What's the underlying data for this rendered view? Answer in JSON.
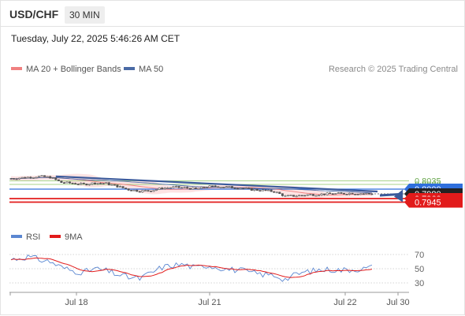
{
  "header": {
    "symbol": "USD/CHF",
    "timeframe": "30 MIN"
  },
  "datetime": "Tuesday, July 22, 2025 5:46:26 AM CET",
  "copyright": "Research © 2025 Trading Central",
  "colors": {
    "candle": "#555555",
    "bollinger_band": "#fcd9d9",
    "ma20": "#f08080",
    "ma50": "#4a6aa5",
    "trendline": "#3a5a9b",
    "resistance": "#a8d38a",
    "pivot": "#2f6fdc",
    "support": "#e21b1b",
    "rsi": "#5b87d1",
    "rsi_ma": "#e21b1b"
  },
  "chart_data": [
    {
      "type": "line",
      "subtype": "candlestick",
      "legend": [
        {
          "label": "MA 20 + Bollinger Bands",
          "color": "#f08080"
        },
        {
          "label": "MA 50",
          "color": "#4a6aa5"
        }
      ],
      "x_ticks": [
        "Jul 18",
        "Jul 21",
        "Jul 22",
        "Jul 30"
      ],
      "price_levels": [
        {
          "value": "0.8035",
          "role": "resistance"
        },
        {
          "value": "0.8020",
          "role": "resistance"
        },
        {
          "value": "0.8000",
          "role": "pivot"
        },
        {
          "value": "0.7980",
          "role": "last"
        },
        {
          "value": "0.7960",
          "role": "support"
        },
        {
          "value": "0.7945",
          "role": "support"
        }
      ],
      "price_anchors": [
        [
          0,
          0.8045
        ],
        [
          6,
          0.805
        ],
        [
          10,
          0.8054
        ],
        [
          14,
          0.805
        ],
        [
          18,
          0.8028
        ],
        [
          22,
          0.8025
        ],
        [
          26,
          0.802
        ],
        [
          30,
          0.8026
        ],
        [
          34,
          0.8024
        ],
        [
          38,
          0.8012
        ],
        [
          42,
          0.7998
        ],
        [
          46,
          0.7992
        ],
        [
          50,
          0.7994
        ],
        [
          54,
          0.8004
        ],
        [
          58,
          0.8008
        ],
        [
          62,
          0.8006
        ],
        [
          66,
          0.8
        ],
        [
          70,
          0.801
        ],
        [
          74,
          0.8012
        ],
        [
          78,
          0.8008
        ],
        [
          82,
          0.8005
        ],
        [
          86,
          0.7998
        ],
        [
          90,
          0.7995
        ],
        [
          94,
          0.799
        ],
        [
          98,
          0.797
        ],
        [
          102,
          0.7972
        ],
        [
          106,
          0.7976
        ],
        [
          110,
          0.7978
        ],
        [
          114,
          0.798
        ],
        [
          118,
          0.7981
        ],
        [
          122,
          0.7983
        ],
        [
          126,
          0.7981
        ],
        [
          129,
          0.798
        ]
      ],
      "projection": {
        "from": 0.798,
        "to": 0.7945
      },
      "trendline": {
        "from": 0.8054,
        "to": 0.799
      }
    },
    {
      "type": "line",
      "legend": [
        {
          "label": "RSI",
          "color": "#5b87d1"
        },
        {
          "label": "9MA",
          "color": "#e21b1b"
        }
      ],
      "y_ticks": [
        70,
        50,
        30
      ],
      "ylim": [
        20,
        80
      ],
      "rsi_anchors": [
        [
          0,
          63
        ],
        [
          6,
          67
        ],
        [
          10,
          63
        ],
        [
          14,
          60
        ],
        [
          18,
          52
        ],
        [
          22,
          47
        ],
        [
          26,
          45
        ],
        [
          30,
          50
        ],
        [
          34,
          47
        ],
        [
          38,
          42
        ],
        [
          42,
          38
        ],
        [
          46,
          36
        ],
        [
          50,
          44
        ],
        [
          54,
          52
        ],
        [
          58,
          55
        ],
        [
          62,
          56
        ],
        [
          66,
          51
        ],
        [
          70,
          55
        ],
        [
          74,
          52
        ],
        [
          78,
          49
        ],
        [
          82,
          48
        ],
        [
          86,
          44
        ],
        [
          90,
          42
        ],
        [
          94,
          41
        ],
        [
          98,
          35
        ],
        [
          102,
          42
        ],
        [
          106,
          46
        ],
        [
          110,
          48
        ],
        [
          114,
          49
        ],
        [
          118,
          48
        ],
        [
          122,
          49
        ],
        [
          126,
          50
        ],
        [
          129,
          52
        ]
      ]
    }
  ]
}
